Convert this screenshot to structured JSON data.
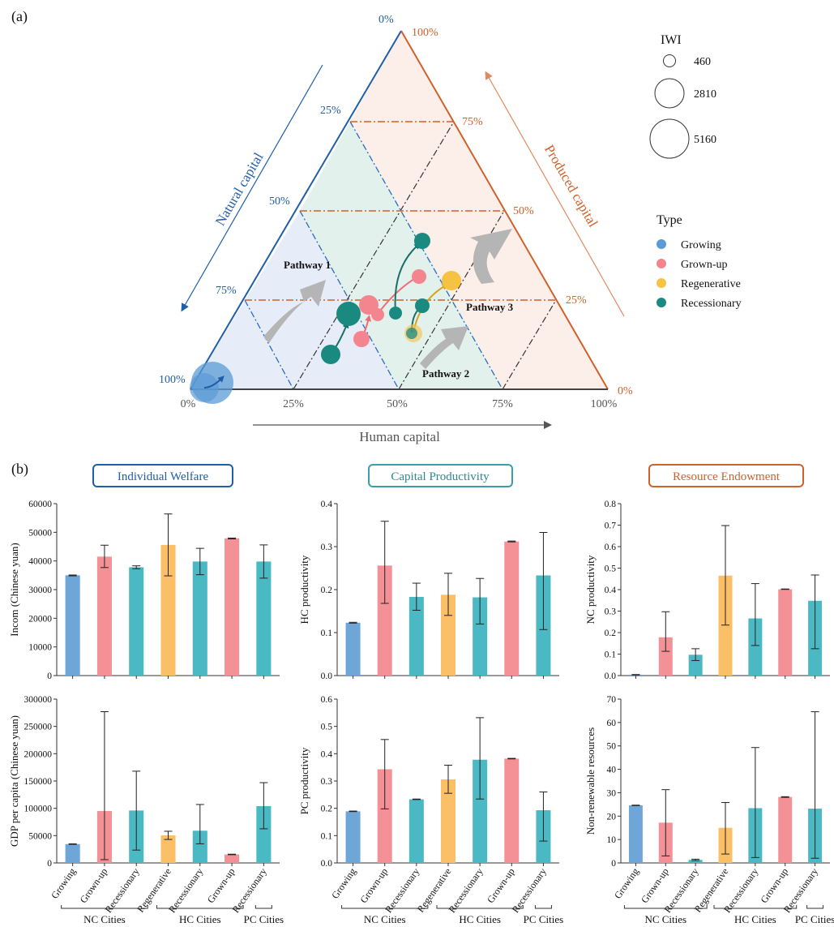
{
  "panel_a_label": "(a)",
  "panel_b_label": "(b)",
  "colors": {
    "growing": "#5b9bd5",
    "grownup": "#f4858e",
    "regenerative": "#f5c242",
    "recessionary": "#1a8a80",
    "bar_growing": "#6fa6d8",
    "bar_grownup": "#f49196",
    "bar_regenerative": "#fbbf67",
    "bar_recessionary": "#4bb9c4",
    "natural": "#1f5ea8",
    "produced": "#d0612a",
    "welfare_box": "#1f5ea8",
    "productivity_box": "#3aa0a8",
    "endowment_box": "#d0612a",
    "nc_zone": "#e6edf8",
    "hc_zone": "#e3f1ec",
    "pc_zone": "#fcefe9"
  },
  "ternary": {
    "natural_axis_label": "Natural capital",
    "produced_axis_label": "Produced capital",
    "human_axis_label": "Human capital",
    "natural_ticks": [
      "0%",
      "25%",
      "50%",
      "75%",
      "100%"
    ],
    "produced_ticks": [
      "100%",
      "75%",
      "50%",
      "25%",
      "0%"
    ],
    "human_ticks": [
      "0%",
      "25%",
      "50%",
      "75%",
      "100%"
    ],
    "pathways": [
      "Pathway 1",
      "Pathway 2",
      "Pathway 3"
    ],
    "legend_iwi_title": "IWI",
    "legend_iwi_values": [
      "460",
      "2810",
      "5160"
    ],
    "legend_type_title": "Type",
    "legend_types": [
      {
        "name": "Growing",
        "color": "#5b9bd5"
      },
      {
        "name": "Grown-up",
        "color": "#f4858e"
      },
      {
        "name": "Regenerative",
        "color": "#f5c242"
      },
      {
        "name": "Recessionary",
        "color": "#1a8a80"
      }
    ]
  },
  "groups": {
    "top_titles": [
      "Individual Welfare",
      "Capital Productivity",
      "Resource Endowment"
    ],
    "x_groups": [
      "NC Cities",
      "HC Cities",
      "PC Cities"
    ]
  },
  "chart_data": [
    {
      "type": "bar",
      "title": "Individual Welfare",
      "ylabel": "Incom (Chinese yuan)",
      "ylim": [
        0,
        60000
      ],
      "yticks": [
        "0",
        "10000",
        "20000",
        "30000",
        "40000",
        "50000",
        "60000"
      ],
      "categories": [
        "Growing",
        "Grown-up",
        "Recessionary",
        "Regenerative",
        "Recessionary",
        "Grown-up",
        "Recessionary"
      ],
      "values": [
        35000,
        41500,
        37800,
        45600,
        39800,
        47900,
        39800
      ],
      "err_low": [
        34800,
        37700,
        37300,
        34800,
        35200,
        47700,
        34000
      ],
      "err_high": [
        35100,
        45500,
        38300,
        56400,
        44400,
        48000,
        45600
      ]
    },
    {
      "type": "bar",
      "title": "Capital Productivity",
      "ylabel": "HC productivity",
      "ylim": [
        0,
        0.4
      ],
      "yticks": [
        "0.0",
        "0.1",
        "0.2",
        "0.3",
        "0.4"
      ],
      "categories": [
        "Growing",
        "Grown-up",
        "Recessionary",
        "Regenerative",
        "Recessionary",
        "Grown-up",
        "Recessionary"
      ],
      "values": [
        0.123,
        0.256,
        0.183,
        0.188,
        0.182,
        0.312,
        0.233
      ],
      "err_low": [
        0.122,
        0.168,
        0.152,
        0.14,
        0.12,
        0.311,
        0.107
      ],
      "err_high": [
        0.124,
        0.359,
        0.215,
        0.238,
        0.226,
        0.313,
        0.333
      ]
    },
    {
      "type": "bar",
      "title": "Resource Endowment",
      "ylabel": "NC productivity",
      "ylim": [
        0,
        0.8
      ],
      "yticks": [
        "0.0",
        "0.1",
        "0.2",
        "0.3",
        "0.4",
        "0.5",
        "0.6",
        "0.7",
        "0.8"
      ],
      "categories": [
        "Growing",
        "Grown-up",
        "Recessionary",
        "Regenerative",
        "Recessionary",
        "Grown-up",
        "Recessionary"
      ],
      "values": [
        0.004,
        0.178,
        0.097,
        0.465,
        0.266,
        0.402,
        0.348
      ],
      "err_low": [
        0.003,
        0.113,
        0.07,
        0.235,
        0.14,
        0.401,
        0.125
      ],
      "err_high": [
        0.005,
        0.297,
        0.125,
        0.698,
        0.428,
        0.403,
        0.468
      ]
    },
    {
      "type": "bar",
      "title": "",
      "ylabel": "GDP  per capita (Chinese yuan)",
      "ylim": [
        0,
        300000
      ],
      "yticks": [
        "0",
        "50000",
        "100000",
        "150000",
        "200000",
        "250000",
        "300000"
      ],
      "categories": [
        "Growing",
        "Grown-up",
        "Recessionary",
        "Regenerative",
        "Recessionary",
        "Grown-up",
        "Recessionary"
      ],
      "values": [
        34500,
        95000,
        96000,
        50500,
        59000,
        15500,
        104000
      ],
      "err_low": [
        34000,
        6000,
        23500,
        43000,
        35000,
        15000,
        62500
      ],
      "err_high": [
        35000,
        277000,
        168000,
        58000,
        107000,
        16000,
        147000
      ]
    },
    {
      "type": "bar",
      "title": "",
      "ylabel": "PC productivity",
      "ylim": [
        0,
        0.6
      ],
      "yticks": [
        "0.0",
        "0.1",
        "0.2",
        "0.3",
        "0.4",
        "0.5",
        "0.6"
      ],
      "categories": [
        "Growing",
        "Grown-up",
        "Recessionary",
        "Regenerative",
        "Recessionary",
        "Grown-up",
        "Recessionary"
      ],
      "values": [
        0.189,
        0.343,
        0.233,
        0.306,
        0.378,
        0.382,
        0.193
      ],
      "err_low": [
        0.188,
        0.198,
        0.232,
        0.255,
        0.234,
        0.381,
        0.08
      ],
      "err_high": [
        0.19,
        0.452,
        0.234,
        0.358,
        0.532,
        0.383,
        0.26
      ]
    },
    {
      "type": "bar",
      "title": "",
      "ylabel": "Non-renewable resources",
      "ylim": [
        0,
        70
      ],
      "yticks": [
        "0",
        "10",
        "20",
        "30",
        "40",
        "50",
        "60",
        "70"
      ],
      "categories": [
        "Growing",
        "Grown-up",
        "Recessionary",
        "Regenerative",
        "Recessionary",
        "Grown-up",
        "Recessionary"
      ],
      "values": [
        24.6,
        17.2,
        1.3,
        15.0,
        23.4,
        28.2,
        23.2
      ],
      "err_low": [
        24.5,
        3.0,
        1.0,
        3.8,
        2.3,
        28.0,
        2.0
      ],
      "err_high": [
        24.7,
        31.3,
        1.6,
        25.8,
        49.3,
        28.3,
        64.6
      ]
    }
  ]
}
